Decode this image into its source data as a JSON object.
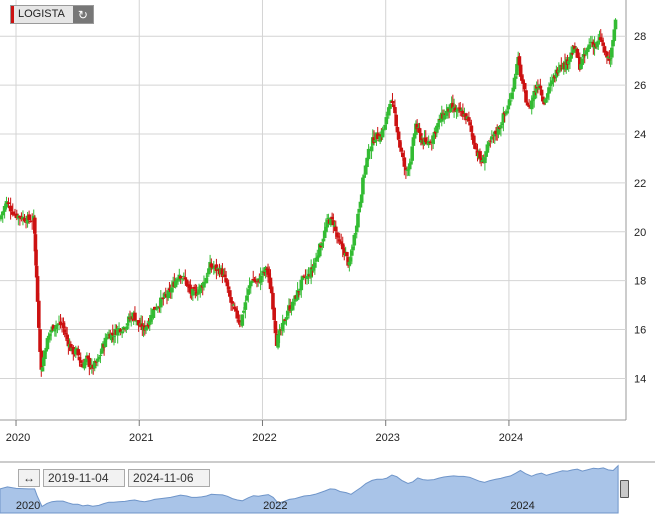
{
  "ticker": {
    "name": "LOGISTA",
    "refresh_icon": "refresh-icon"
  },
  "range": {
    "start": "2019-11-04",
    "end": "2024-11-06",
    "handle_icon": "left-right-arrow-icon"
  },
  "colors": {
    "up": "#33bb33",
    "down": "#cc1111",
    "grid": "#d4d4d4",
    "navigator_fill": "#a9c4e8",
    "navigator_line": "#6f95c9"
  },
  "navigator": {
    "x_tick_labels": [
      "2020",
      "2022",
      "2024"
    ]
  },
  "chart_data": {
    "type": "candlestick",
    "title": "LOGISTA",
    "y_axis_side": "right",
    "ylim": [
      12.3,
      29.4
    ],
    "y_ticks": [
      14,
      16,
      18,
      20,
      22,
      24,
      26,
      28
    ],
    "xlim": [
      2019.87,
      2024.95
    ],
    "x_ticks": [
      2020,
      2021,
      2022,
      2023,
      2024
    ],
    "x_tick_labels": [
      "2020",
      "2021",
      "2022",
      "2023",
      "2024"
    ],
    "grid": true,
    "closes": [
      [
        2019.87,
        20.5
      ],
      [
        2019.93,
        21.2
      ],
      [
        2020.0,
        20.7
      ],
      [
        2020.05,
        20.6
      ],
      [
        2020.1,
        20.5
      ],
      [
        2020.15,
        20.5
      ],
      [
        2020.17,
        18.1
      ],
      [
        2020.21,
        14.3
      ],
      [
        2020.25,
        15.4
      ],
      [
        2020.29,
        16.0
      ],
      [
        2020.33,
        16.2
      ],
      [
        2020.38,
        16.2
      ],
      [
        2020.42,
        15.6
      ],
      [
        2020.46,
        15.1
      ],
      [
        2020.5,
        15.1
      ],
      [
        2020.54,
        14.5
      ],
      [
        2020.58,
        14.8
      ],
      [
        2020.62,
        14.4
      ],
      [
        2020.67,
        14.7
      ],
      [
        2020.71,
        15.3
      ],
      [
        2020.75,
        15.8
      ],
      [
        2020.79,
        15.8
      ],
      [
        2020.83,
        16.0
      ],
      [
        2020.88,
        16.1
      ],
      [
        2020.92,
        16.4
      ],
      [
        2020.96,
        16.6
      ],
      [
        2021.0,
        16.2
      ],
      [
        2021.04,
        16.0
      ],
      [
        2021.08,
        16.3
      ],
      [
        2021.12,
        16.8
      ],
      [
        2021.17,
        17.1
      ],
      [
        2021.21,
        17.3
      ],
      [
        2021.25,
        17.5
      ],
      [
        2021.29,
        17.9
      ],
      [
        2021.33,
        18.3
      ],
      [
        2021.38,
        18.0
      ],
      [
        2021.42,
        17.5
      ],
      [
        2021.46,
        17.5
      ],
      [
        2021.5,
        17.7
      ],
      [
        2021.54,
        18.0
      ],
      [
        2021.58,
        18.6
      ],
      [
        2021.62,
        18.5
      ],
      [
        2021.67,
        18.4
      ],
      [
        2021.71,
        17.9
      ],
      [
        2021.75,
        17.1
      ],
      [
        2021.79,
        16.6
      ],
      [
        2021.83,
        16.3
      ],
      [
        2021.88,
        17.4
      ],
      [
        2021.92,
        18.1
      ],
      [
        2021.96,
        17.9
      ],
      [
        2022.0,
        18.2
      ],
      [
        2022.04,
        18.5
      ],
      [
        2022.08,
        17.5
      ],
      [
        2022.12,
        15.5
      ],
      [
        2022.17,
        16.1
      ],
      [
        2022.21,
        16.8
      ],
      [
        2022.25,
        17.0
      ],
      [
        2022.29,
        17.5
      ],
      [
        2022.33,
        18.0
      ],
      [
        2022.38,
        18.2
      ],
      [
        2022.42,
        18.6
      ],
      [
        2022.46,
        19.2
      ],
      [
        2022.5,
        19.8
      ],
      [
        2022.54,
        20.5
      ],
      [
        2022.58,
        20.4
      ],
      [
        2022.62,
        19.6
      ],
      [
        2022.67,
        19.2
      ],
      [
        2022.71,
        18.6
      ],
      [
        2022.75,
        19.8
      ],
      [
        2022.79,
        21.0
      ],
      [
        2022.83,
        22.4
      ],
      [
        2022.88,
        23.5
      ],
      [
        2022.92,
        23.9
      ],
      [
        2022.96,
        23.9
      ],
      [
        2023.0,
        24.3
      ],
      [
        2023.04,
        25.4
      ],
      [
        2023.08,
        24.8
      ],
      [
        2023.12,
        23.5
      ],
      [
        2023.17,
        22.4
      ],
      [
        2023.21,
        23.0
      ],
      [
        2023.25,
        24.4
      ],
      [
        2023.29,
        23.8
      ],
      [
        2023.33,
        23.6
      ],
      [
        2023.38,
        23.8
      ],
      [
        2023.42,
        24.3
      ],
      [
        2023.46,
        24.7
      ],
      [
        2023.5,
        24.9
      ],
      [
        2023.54,
        25.1
      ],
      [
        2023.58,
        24.9
      ],
      [
        2023.62,
        24.9
      ],
      [
        2023.67,
        24.6
      ],
      [
        2023.71,
        23.9
      ],
      [
        2023.75,
        23.2
      ],
      [
        2023.79,
        22.8
      ],
      [
        2023.83,
        23.4
      ],
      [
        2023.88,
        23.9
      ],
      [
        2023.92,
        24.2
      ],
      [
        2023.96,
        24.7
      ],
      [
        2024.0,
        25.1
      ],
      [
        2024.04,
        26.0
      ],
      [
        2024.08,
        27.0
      ],
      [
        2024.12,
        25.9
      ],
      [
        2024.17,
        25.0
      ],
      [
        2024.21,
        25.7
      ],
      [
        2024.25,
        26.1
      ],
      [
        2024.29,
        25.3
      ],
      [
        2024.33,
        25.8
      ],
      [
        2024.38,
        26.4
      ],
      [
        2024.42,
        26.9
      ],
      [
        2024.46,
        26.8
      ],
      [
        2024.5,
        27.2
      ],
      [
        2024.54,
        27.5
      ],
      [
        2024.58,
        26.8
      ],
      [
        2024.62,
        27.2
      ],
      [
        2024.67,
        27.8
      ],
      [
        2024.71,
        27.6
      ],
      [
        2024.75,
        27.9
      ],
      [
        2024.79,
        27.2
      ],
      [
        2024.83,
        27.0
      ],
      [
        2024.87,
        28.7
      ]
    ]
  }
}
